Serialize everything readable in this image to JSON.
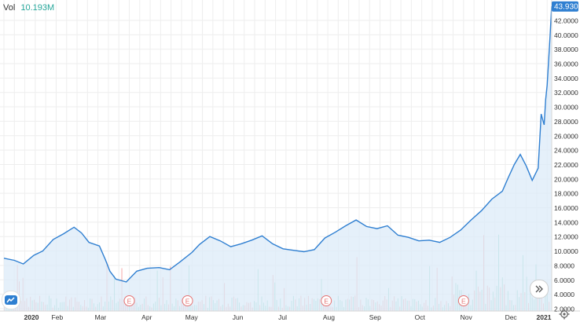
{
  "volume_legend": {
    "label": "Vol",
    "value": "10.193M"
  },
  "price_badge": "43.9300",
  "earnings_marker": "E",
  "colors": {
    "line": "#2f7fd1",
    "area": "#dcebf8",
    "grid": "#eeeeee",
    "vol_up": "#8fd6c4",
    "vol_down": "#f4a8a8",
    "earnings_marker": "#e57373",
    "badge": "#2f7fd1"
  },
  "icons": {
    "logo": "tradingview-cloud-icon",
    "scroll": "double-chevron-right-icon",
    "settings": "gear-icon"
  },
  "chart_data": {
    "type": "line",
    "x_ticks": [
      "2020",
      "Feb",
      "Mar",
      "Apr",
      "May",
      "Jun",
      "Jul",
      "Aug",
      "Sep",
      "Oct",
      "Nov",
      "Dec",
      "2021"
    ],
    "y_ticks": [
      "2.0000",
      "4.0000",
      "6.0000",
      "8.0000",
      "10.0000",
      "12.0000",
      "14.0000",
      "16.0000",
      "18.0000",
      "20.0000",
      "22.0000",
      "24.0000",
      "26.0000",
      "28.0000",
      "30.0000",
      "32.0000",
      "34.0000",
      "36.0000",
      "38.0000",
      "40.0000",
      "42.0000"
    ],
    "ylim": [
      2,
      44.5
    ],
    "last_value": 43.93,
    "earnings_dates": [
      "2020-03-25",
      "2020-05-03",
      "2020-08-04",
      "2020-11-04"
    ],
    "series": [
      {
        "values": [
          [
            "2020-01-01",
            9.0
          ],
          [
            "2020-01-08",
            8.7
          ],
          [
            "2020-01-14",
            8.2
          ],
          [
            "2020-01-21",
            9.4
          ],
          [
            "2020-01-27",
            10.0
          ],
          [
            "2020-02-03",
            11.6
          ],
          [
            "2020-02-10",
            12.4
          ],
          [
            "2020-02-17",
            13.3
          ],
          [
            "2020-02-22",
            12.5
          ],
          [
            "2020-02-27",
            11.2
          ],
          [
            "2020-03-05",
            10.7
          ],
          [
            "2020-03-09",
            8.8
          ],
          [
            "2020-03-12",
            7.2
          ],
          [
            "2020-03-16",
            6.1
          ],
          [
            "2020-03-23",
            5.7
          ],
          [
            "2020-03-30",
            7.2
          ],
          [
            "2020-04-06",
            7.6
          ],
          [
            "2020-04-14",
            7.7
          ],
          [
            "2020-04-21",
            7.4
          ],
          [
            "2020-04-28",
            8.5
          ],
          [
            "2020-05-06",
            9.8
          ],
          [
            "2020-05-11",
            10.9
          ],
          [
            "2020-05-18",
            12.0
          ],
          [
            "2020-05-25",
            11.4
          ],
          [
            "2020-06-01",
            10.6
          ],
          [
            "2020-06-08",
            11.0
          ],
          [
            "2020-06-15",
            11.5
          ],
          [
            "2020-06-22",
            12.1
          ],
          [
            "2020-06-29",
            11.0
          ],
          [
            "2020-07-06",
            10.3
          ],
          [
            "2020-07-13",
            10.1
          ],
          [
            "2020-07-20",
            9.9
          ],
          [
            "2020-07-27",
            10.2
          ],
          [
            "2020-08-03",
            11.8
          ],
          [
            "2020-08-10",
            12.6
          ],
          [
            "2020-08-17",
            13.5
          ],
          [
            "2020-08-24",
            14.3
          ],
          [
            "2020-08-31",
            13.4
          ],
          [
            "2020-09-07",
            13.1
          ],
          [
            "2020-09-14",
            13.5
          ],
          [
            "2020-09-21",
            12.2
          ],
          [
            "2020-09-28",
            11.9
          ],
          [
            "2020-10-05",
            11.4
          ],
          [
            "2020-10-12",
            11.5
          ],
          [
            "2020-10-19",
            11.2
          ],
          [
            "2020-10-26",
            11.9
          ],
          [
            "2020-11-02",
            12.9
          ],
          [
            "2020-11-09",
            14.3
          ],
          [
            "2020-11-16",
            15.6
          ],
          [
            "2020-11-23",
            17.2
          ],
          [
            "2020-11-30",
            18.3
          ],
          [
            "2020-12-04",
            20.2
          ],
          [
            "2020-12-08",
            22.0
          ],
          [
            "2020-12-12",
            23.4
          ],
          [
            "2020-12-16",
            21.8
          ],
          [
            "2020-12-20",
            19.8
          ],
          [
            "2020-12-24",
            21.5
          ],
          [
            "2020-12-26",
            29.0
          ],
          [
            "2020-12-28",
            27.5
          ],
          [
            "2020-12-29",
            31.0
          ],
          [
            "2020-12-30",
            33.0
          ],
          [
            "2020-12-31",
            36.5
          ],
          [
            "2021-01-01",
            40.0
          ],
          [
            "2021-01-02",
            43.93
          ]
        ]
      }
    ]
  }
}
